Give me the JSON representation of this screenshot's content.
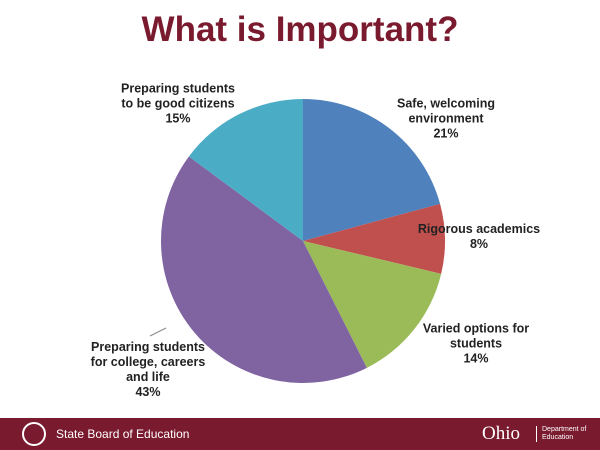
{
  "chart_data": {
    "type": "pie",
    "title": "What is Important?",
    "categories": [
      "Safe, welcoming environment",
      "Rigorous academics",
      "Varied options for students",
      "Preparing students for college, careers and life",
      "Preparing students to be good citizens"
    ],
    "values": [
      21,
      8,
      14,
      43,
      15
    ],
    "value_labels": [
      "21%",
      "8%",
      "14%",
      "43%",
      "15%"
    ],
    "colors": [
      "#4f81bd",
      "#c0504d",
      "#9bbb59",
      "#8064a2",
      "#4bacc6"
    ]
  },
  "footer": {
    "left": "State Board of Education",
    "brand": "Ohio",
    "department": "Department of Education"
  }
}
